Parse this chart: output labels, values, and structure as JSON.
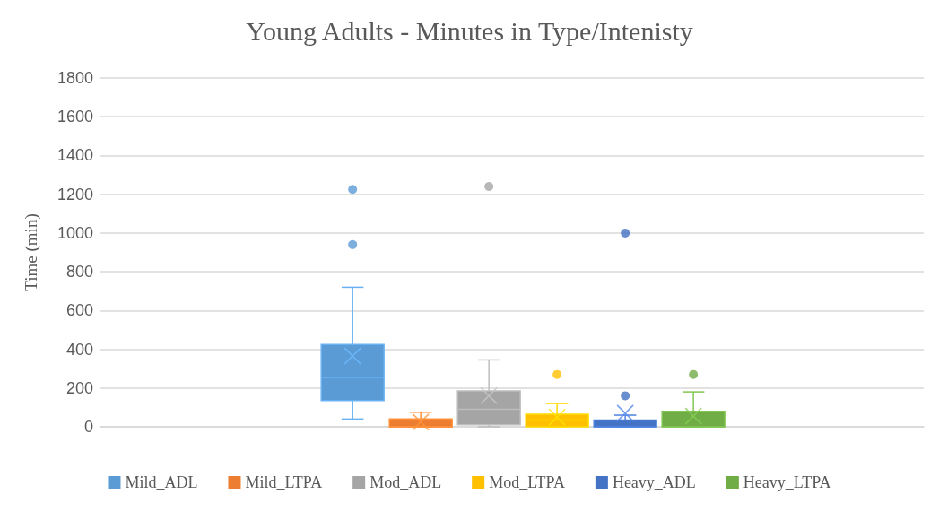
{
  "chart_data": {
    "type": "box",
    "title": "Young Adults - Minutes in Type/Intenisty",
    "ylabel": "Time (min)",
    "categories": [
      null
    ],
    "ylim": [
      0,
      1800
    ],
    "yticks": [
      0,
      200,
      400,
      600,
      800,
      1000,
      1200,
      1400,
      1600,
      1800
    ],
    "grid": "y",
    "legend": "bottom",
    "series": [
      {
        "name": "Mild_ADL",
        "color": "#5b9bd5",
        "boxes": [
          {
            "low": 40,
            "q1": 135,
            "median": 255,
            "q3": 425,
            "high": 720,
            "mean": 365,
            "outliers": [
              940,
              1225
            ]
          }
        ]
      },
      {
        "name": "Mild_LTPA",
        "color": "#ed7d31",
        "boxes": [
          {
            "low": 0,
            "q1": 0,
            "median": 0,
            "q3": 40,
            "high": 75,
            "mean": 25
          }
        ]
      },
      {
        "name": "Mod_ADL",
        "color": "#a5a5a5",
        "boxes": [
          {
            "low": 0,
            "q1": 10,
            "median": 90,
            "q3": 185,
            "high": 345,
            "mean": 160,
            "outliers": [
              1240
            ]
          }
        ]
      },
      {
        "name": "Mod_LTPA",
        "color": "#ffc000",
        "boxes": [
          {
            "low": 0,
            "q1": 0,
            "median": 35,
            "q3": 65,
            "high": 120,
            "mean": 50,
            "outliers": [
              270
            ]
          }
        ]
      },
      {
        "name": "Heavy_ADL",
        "color": "#4472c4",
        "boxes": [
          {
            "low": 0,
            "q1": 0,
            "median": 0,
            "q3": 35,
            "high": 60,
            "mean": 70,
            "outliers": [
              160,
              1000
            ]
          }
        ]
      },
      {
        "name": "Heavy_LTPA",
        "color": "#70ad47",
        "boxes": [
          {
            "low": 0,
            "q1": 0,
            "median": 0,
            "q3": 80,
            "high": 180,
            "mean": 55,
            "outliers": [
              270
            ]
          }
        ]
      }
    ]
  }
}
